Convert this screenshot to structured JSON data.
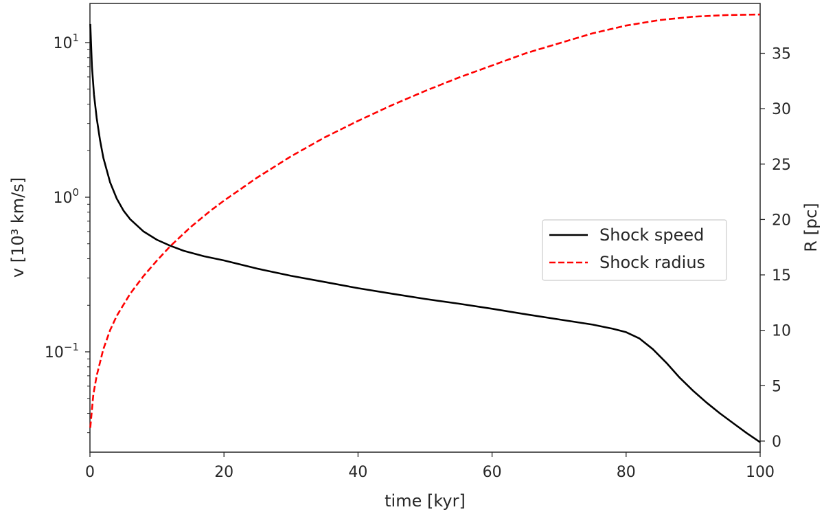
{
  "chart_data": {
    "type": "line",
    "xlabel": "time [kyr]",
    "ylabel_left": "v [10³ km/s]",
    "ylabel_right": "R [pc]",
    "xlim": [
      0,
      100
    ],
    "xticks": [
      0,
      20,
      40,
      60,
      80,
      100
    ],
    "y_left_scale": "log",
    "y_left_ticks": [
      {
        "value": 10,
        "base": "10",
        "exp": "1"
      },
      {
        "value": 1,
        "base": "10",
        "exp": "0"
      },
      {
        "value": 0.1,
        "base": "10",
        "exp": "−1"
      }
    ],
    "y_right_lim": [
      -1,
      39.5
    ],
    "y_right_ticks": [
      0,
      5,
      10,
      15,
      20,
      25,
      30,
      35
    ],
    "grid": false,
    "legend_position": "center-right",
    "series": [
      {
        "name": "Shock speed",
        "axis": "left",
        "color": "#000000",
        "style": "solid",
        "x": [
          0.05,
          0.3,
          0.6,
          1,
          1.5,
          2,
          3,
          4,
          5,
          6,
          8,
          10,
          12,
          14,
          17,
          20,
          25,
          30,
          35,
          40,
          45,
          50,
          55,
          60,
          65,
          70,
          75,
          78,
          80,
          82,
          84,
          86,
          88,
          90,
          92,
          94,
          96,
          98,
          100
        ],
        "values": [
          13.2,
          7.0,
          4.6,
          3.25,
          2.35,
          1.8,
          1.25,
          0.98,
          0.82,
          0.72,
          0.6,
          0.53,
          0.485,
          0.45,
          0.415,
          0.39,
          0.345,
          0.31,
          0.283,
          0.258,
          0.238,
          0.22,
          0.205,
          0.19,
          0.175,
          0.162,
          0.15,
          0.141,
          0.134,
          0.122,
          0.104,
          0.085,
          0.068,
          0.056,
          0.047,
          0.04,
          0.0345,
          0.0298,
          0.026
        ]
      },
      {
        "name": "Shock radius",
        "axis": "right",
        "color": "#ff0000",
        "style": "dashed",
        "x": [
          0.05,
          0.5,
          1,
          2,
          3,
          4,
          6,
          8,
          10,
          12,
          15,
          18,
          20,
          25,
          30,
          35,
          40,
          45,
          50,
          55,
          60,
          65,
          70,
          75,
          80,
          85,
          90,
          95,
          100
        ],
        "values": [
          1.2,
          4.2,
          5.9,
          8.3,
          10.0,
          11.3,
          13.3,
          14.9,
          16.3,
          17.6,
          19.3,
          20.8,
          21.7,
          23.8,
          25.7,
          27.4,
          28.9,
          30.3,
          31.6,
          32.8,
          33.9,
          35.0,
          35.9,
          36.8,
          37.5,
          38.0,
          38.3,
          38.45,
          38.5
        ]
      }
    ]
  }
}
